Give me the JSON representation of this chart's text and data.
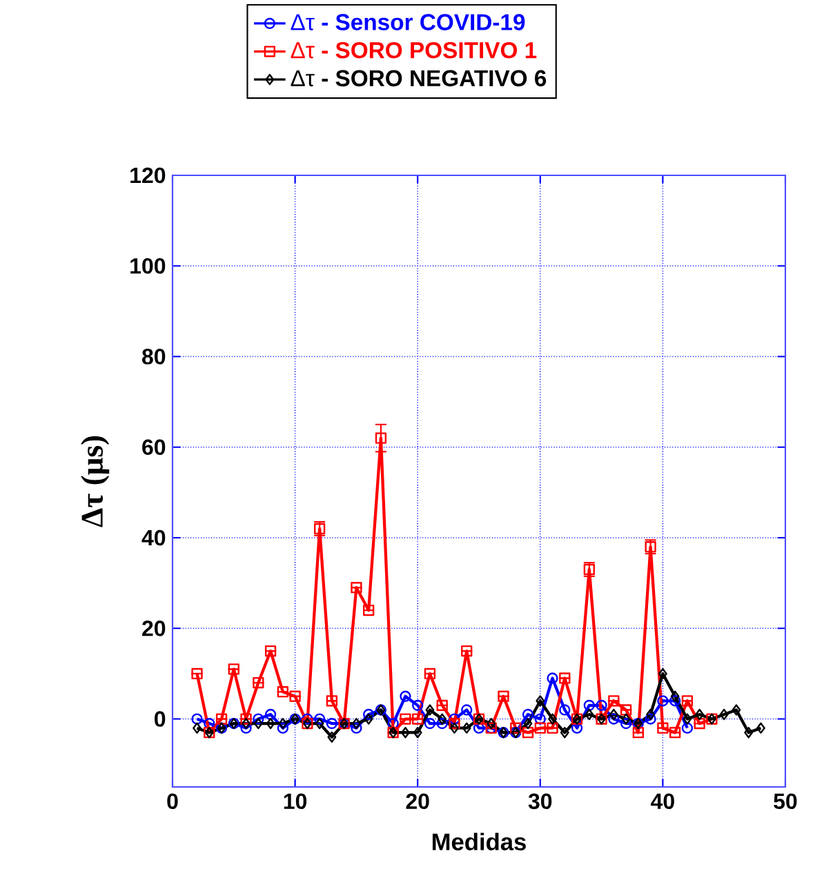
{
  "chart_data": {
    "type": "line",
    "xlabel": "Medidas",
    "ylabel": "Δτ (μs)",
    "xlim": [
      0,
      50
    ],
    "ylim": [
      -15,
      120
    ],
    "xticks": [
      0,
      10,
      20,
      30,
      40,
      50
    ],
    "yticks": [
      0,
      20,
      40,
      60,
      80,
      100,
      120
    ],
    "grid": true,
    "legend": "top",
    "series": [
      {
        "name": "Δτ  **- Sensor COVID-19**",
        "color": "#0000ff",
        "marker": "circle",
        "x": [
          2,
          3,
          4,
          5,
          6,
          7,
          8,
          9,
          10,
          11,
          12,
          13,
          14,
          15,
          16,
          17,
          18,
          19,
          20,
          21,
          22,
          23,
          24,
          25,
          26,
          27,
          28,
          29,
          30,
          31,
          32,
          33,
          34,
          35,
          36,
          37,
          38,
          39,
          40,
          41,
          42
        ],
        "values": [
          0,
          -1,
          -2,
          -1,
          -2,
          0,
          1,
          -2,
          0,
          0,
          0,
          -1,
          -1,
          -2,
          1,
          2,
          -1,
          5,
          3,
          -1,
          -1,
          0,
          2,
          -2,
          -2,
          -3,
          -3,
          1,
          0,
          9,
          2,
          -2,
          3,
          3,
          0,
          -1,
          -1,
          0,
          4,
          4,
          -2
        ]
      },
      {
        "name": "Δτ  **- SORO POSITIVO 1**",
        "color": "#ff0000",
        "marker": "square",
        "x": [
          2,
          3,
          4,
          5,
          6,
          7,
          8,
          9,
          10,
          11,
          12,
          13,
          14,
          15,
          16,
          17,
          18,
          19,
          20,
          21,
          22,
          23,
          24,
          25,
          26,
          27,
          28,
          29,
          30,
          31,
          32,
          33,
          34,
          35,
          36,
          37,
          38,
          39,
          40,
          41,
          42,
          43,
          44
        ],
        "values": [
          10,
          -3,
          0,
          11,
          0,
          8,
          15,
          6,
          5,
          -1,
          42,
          4,
          -1,
          29,
          24,
          62,
          -3,
          0,
          0,
          10,
          3,
          -1,
          15,
          0,
          -2,
          5,
          -2,
          -3,
          -2,
          -2,
          9,
          0,
          33,
          0,
          4,
          2,
          -3,
          38,
          -2,
          -3,
          4,
          -1,
          0
        ],
        "errors": [
          null,
          null,
          null,
          null,
          null,
          null,
          null,
          null,
          null,
          null,
          1.5,
          null,
          null,
          null,
          null,
          3,
          null,
          null,
          null,
          null,
          null,
          null,
          null,
          null,
          null,
          null,
          null,
          null,
          null,
          null,
          null,
          null,
          1.5,
          null,
          null,
          null,
          null,
          1.5,
          null,
          null,
          null,
          null,
          null
        ]
      },
      {
        "name": "Δτ  **- SORO NEGATIVO 6**",
        "color": "#000000",
        "marker": "diamond",
        "x": [
          2,
          3,
          4,
          5,
          6,
          7,
          8,
          9,
          10,
          11,
          12,
          13,
          14,
          15,
          16,
          17,
          18,
          19,
          20,
          21,
          22,
          23,
          24,
          25,
          26,
          27,
          28,
          29,
          30,
          31,
          32,
          33,
          34,
          35,
          36,
          37,
          38,
          39,
          40,
          41,
          42,
          43,
          44,
          45,
          46,
          47,
          48
        ],
        "values": [
          -2,
          -3,
          -2,
          -1,
          -1,
          -1,
          -1,
          -1,
          0,
          -1,
          -1,
          -4,
          -1,
          -1,
          0,
          2,
          -3,
          -3,
          -3,
          2,
          0,
          -2,
          -2,
          0,
          -1,
          -3,
          -3,
          -1,
          4,
          0,
          -3,
          0,
          1,
          0,
          1,
          0,
          -1,
          1,
          10,
          5,
          0,
          1,
          0,
          1,
          2,
          -3,
          -2
        ]
      }
    ]
  }
}
